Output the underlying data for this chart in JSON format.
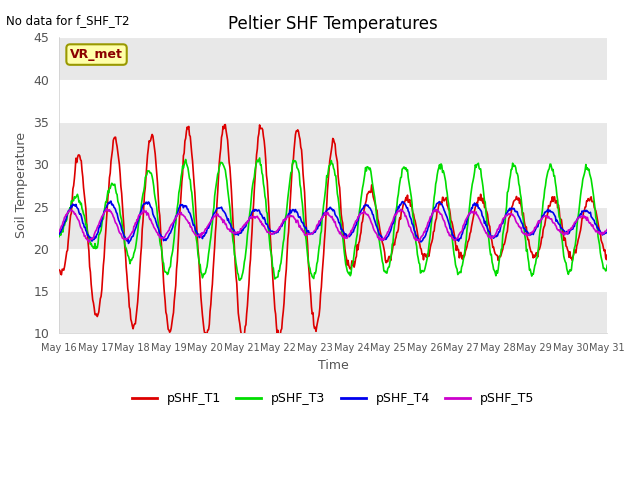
{
  "title": "Peltier SHF Temperatures",
  "xlabel": "Time",
  "ylabel": "Soil Temperature",
  "note": "No data for f_SHF_T2",
  "vr_label": "VR_met",
  "ylim": [
    10,
    45
  ],
  "series": {
    "pSHF_T1": {
      "color": "#dd0000",
      "lw": 1.2
    },
    "pSHF_T3": {
      "color": "#00dd00",
      "lw": 1.2
    },
    "pSHF_T4": {
      "color": "#0000ee",
      "lw": 1.2
    },
    "pSHF_T5": {
      "color": "#cc00cc",
      "lw": 1.2
    }
  },
  "yticks": [
    10,
    15,
    20,
    25,
    30,
    35,
    40,
    45
  ],
  "xtick_labels": [
    "May 16",
    "May 17",
    "May 18",
    "May 19",
    "May 20",
    "May 21",
    "May 22",
    "May 23",
    "May 24",
    "May 25",
    "May 26",
    "May 27",
    "May 28",
    "May 29",
    "May 30",
    "May 31"
  ],
  "fig_bg": "#ffffff",
  "plot_bg": "#ffffff"
}
